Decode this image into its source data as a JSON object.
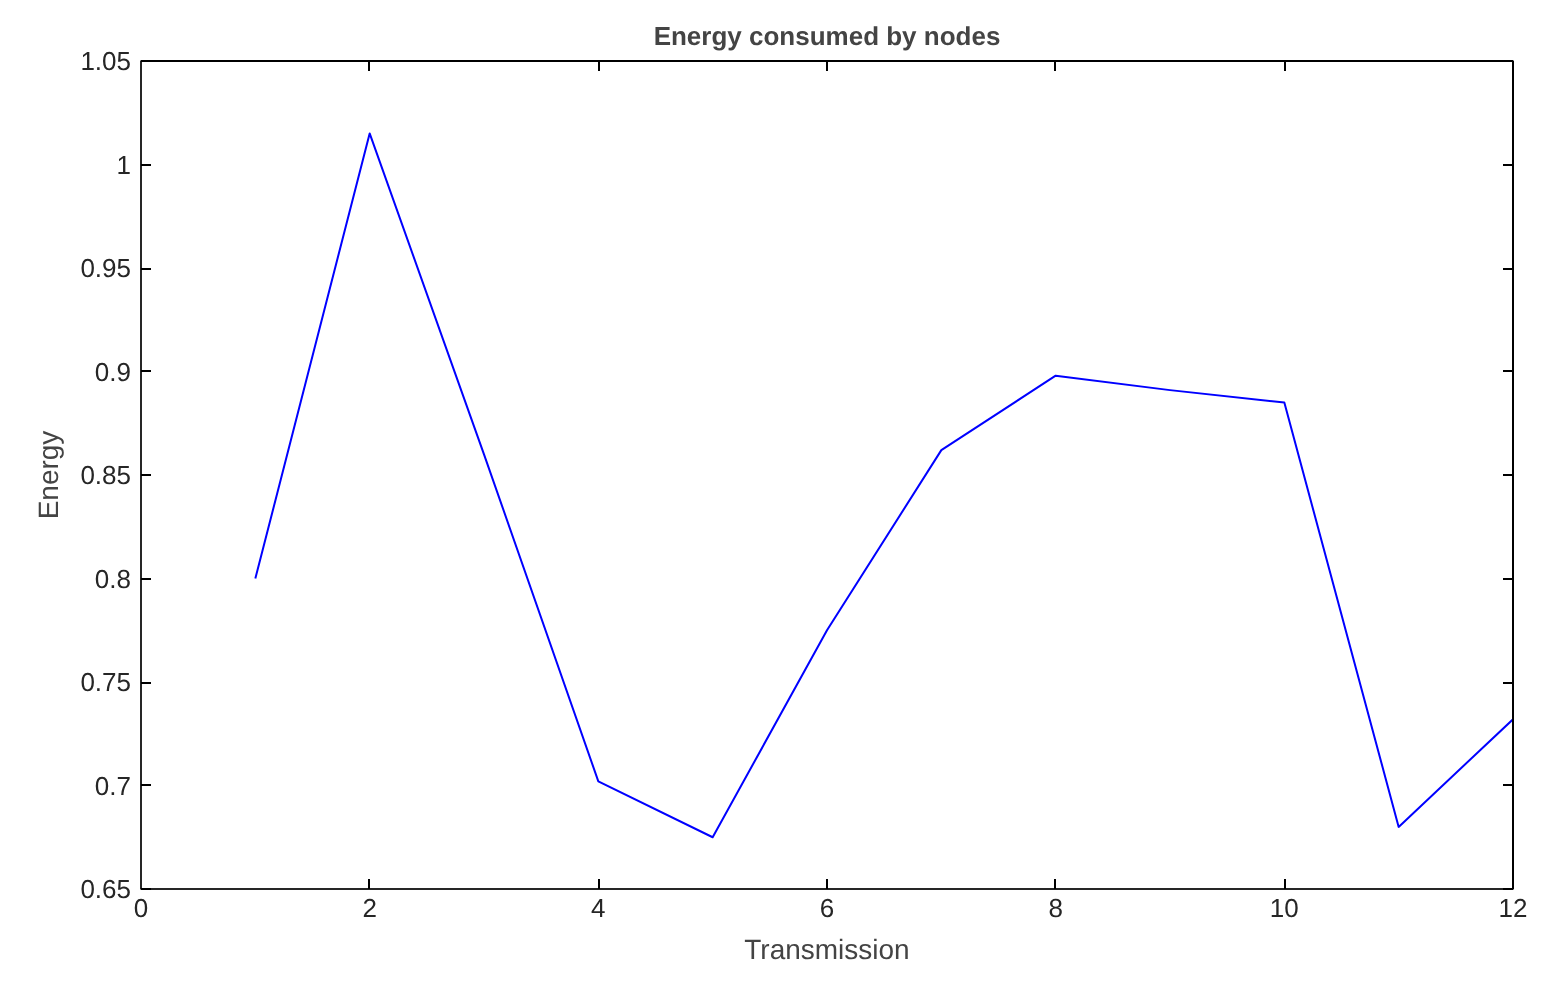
{
  "chart_data": {
    "type": "line",
    "title": "Energy consumed by nodes",
    "xlabel": "Transmission",
    "ylabel": "Energy",
    "x": [
      1,
      2,
      3,
      4,
      5,
      6,
      7,
      8,
      9,
      10,
      11,
      12
    ],
    "series": [
      {
        "color": "#0000ff",
        "values": [
          0.8,
          1.015,
          0.86,
          0.702,
          0.675,
          0.775,
          0.862,
          0.898,
          0.891,
          0.885,
          0.68,
          0.732
        ]
      }
    ],
    "xlim": [
      0,
      12
    ],
    "xticks": [
      0,
      2,
      4,
      6,
      8,
      10,
      12
    ],
    "ylim": [
      0.65,
      1.05
    ],
    "yticks": [
      0.65,
      0.7,
      0.75,
      0.8,
      0.85,
      0.9,
      0.95,
      1,
      1.05
    ],
    "grid": false,
    "marker": "none",
    "line_style": "solid"
  }
}
